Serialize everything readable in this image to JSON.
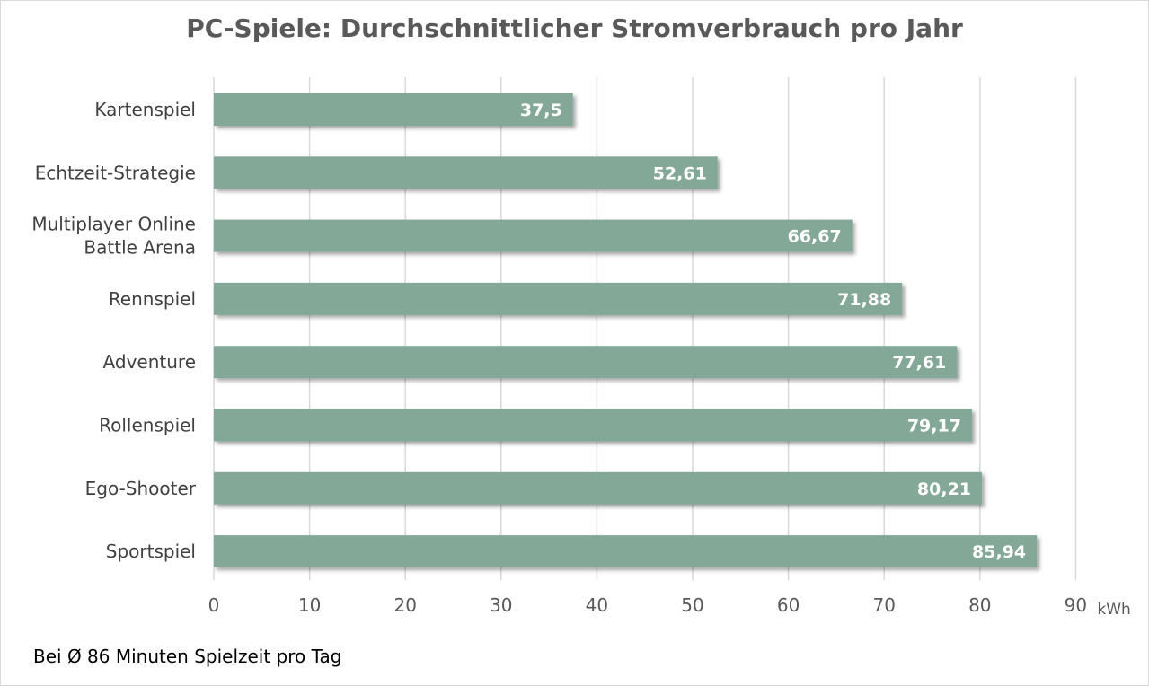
{
  "chart_data": {
    "type": "bar",
    "orientation": "horizontal",
    "title": "PC-Spiele: Durchschnittlicher Stromverbrauch pro Jahr",
    "categories": [
      "Kartenspiel",
      "Echtzeit-Strategie",
      "Multiplayer Online Battle Arena",
      "Rennspiel",
      "Adventure",
      "Rollenspiel",
      "Ego-Shooter",
      "Sportspiel"
    ],
    "values": [
      37.5,
      52.61,
      66.67,
      71.88,
      77.61,
      79.17,
      80.21,
      85.94
    ],
    "value_labels": [
      "37,5",
      "52,61",
      "66,67",
      "71,88",
      "77,61",
      "79,17",
      "80,21",
      "85,94"
    ],
    "xlim": [
      0,
      90
    ],
    "xticks": [
      0,
      10,
      20,
      30,
      40,
      50,
      60,
      70,
      80,
      90
    ],
    "x_unit": "kWh",
    "grid": true,
    "bar_color": "#84a898",
    "note": "Bei Ø 86 Minuten Spielzeit pro Tag"
  }
}
